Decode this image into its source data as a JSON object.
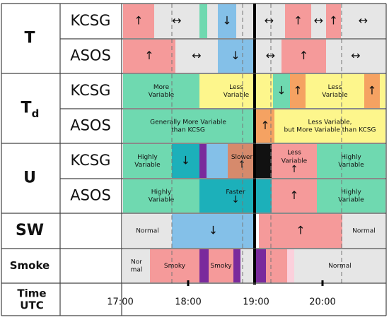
{
  "groups": [
    {
      "label": "T",
      "rows": [
        {
          "station": "KCSG",
          "cells": [
            [
              "↑"
            ],
            [
              "↔"
            ],
            [
              "↓"
            ],
            [
              "↔"
            ],
            [
              "↑"
            ],
            [
              "↔"
            ],
            [
              "↑"
            ],
            [
              "↔"
            ]
          ]
        },
        {
          "station": "ASOS",
          "cells": [
            [
              "↑"
            ],
            [
              "↔"
            ],
            [
              "↓"
            ],
            [
              "↔"
            ],
            [
              "↑"
            ],
            [
              "↔"
            ]
          ]
        }
      ]
    },
    {
      "label": "T",
      "sub": "d",
      "rows": [
        {
          "station": "KCSG",
          "cells": [
            [
              "More",
              "Variable"
            ],
            [
              "Less",
              "Variable"
            ],
            [
              "↓"
            ],
            [
              "↑"
            ],
            [
              "Less",
              "Variable"
            ],
            [
              "↑"
            ]
          ]
        },
        {
          "station": "ASOS",
          "cells": [
            [
              "Generally More Variable",
              "than KCSG"
            ],
            [
              "↑"
            ],
            [
              "Less Variable,",
              "but More Variable than KCSG"
            ]
          ]
        }
      ]
    },
    {
      "label": "U",
      "rows": [
        {
          "station": "KCSG",
          "cells": [
            [
              "Highly",
              "Variable"
            ],
            [
              "↓"
            ],
            [
              "Slower",
              "↑"
            ],
            [
              "Less",
              "Variable",
              "↑"
            ],
            [
              "Highly",
              "Variable"
            ]
          ]
        },
        {
          "station": "ASOS",
          "cells": [
            [
              "Highly",
              "Variable"
            ],
            [
              "Faster",
              "↓"
            ],
            [
              "↑"
            ],
            [
              "Highly",
              "Variable"
            ]
          ]
        }
      ]
    },
    {
      "label": "SW",
      "rows": [
        {
          "cells": [
            [
              "Normal"
            ],
            [
              "↓"
            ],
            [
              "↑"
            ],
            [
              "Normal"
            ]
          ]
        }
      ]
    },
    {
      "label": "Smoke",
      "rows": [
        {
          "cells": [
            [
              "Nor",
              "mal"
            ],
            [
              "Smoky"
            ],
            [
              "Smoky"
            ],
            [
              "Normal"
            ]
          ]
        }
      ]
    }
  ],
  "time": {
    "label": [
      "Time",
      "UTC"
    ],
    "ticks": [
      "17:00",
      "18:00",
      "19:00",
      "20:00"
    ]
  }
}
